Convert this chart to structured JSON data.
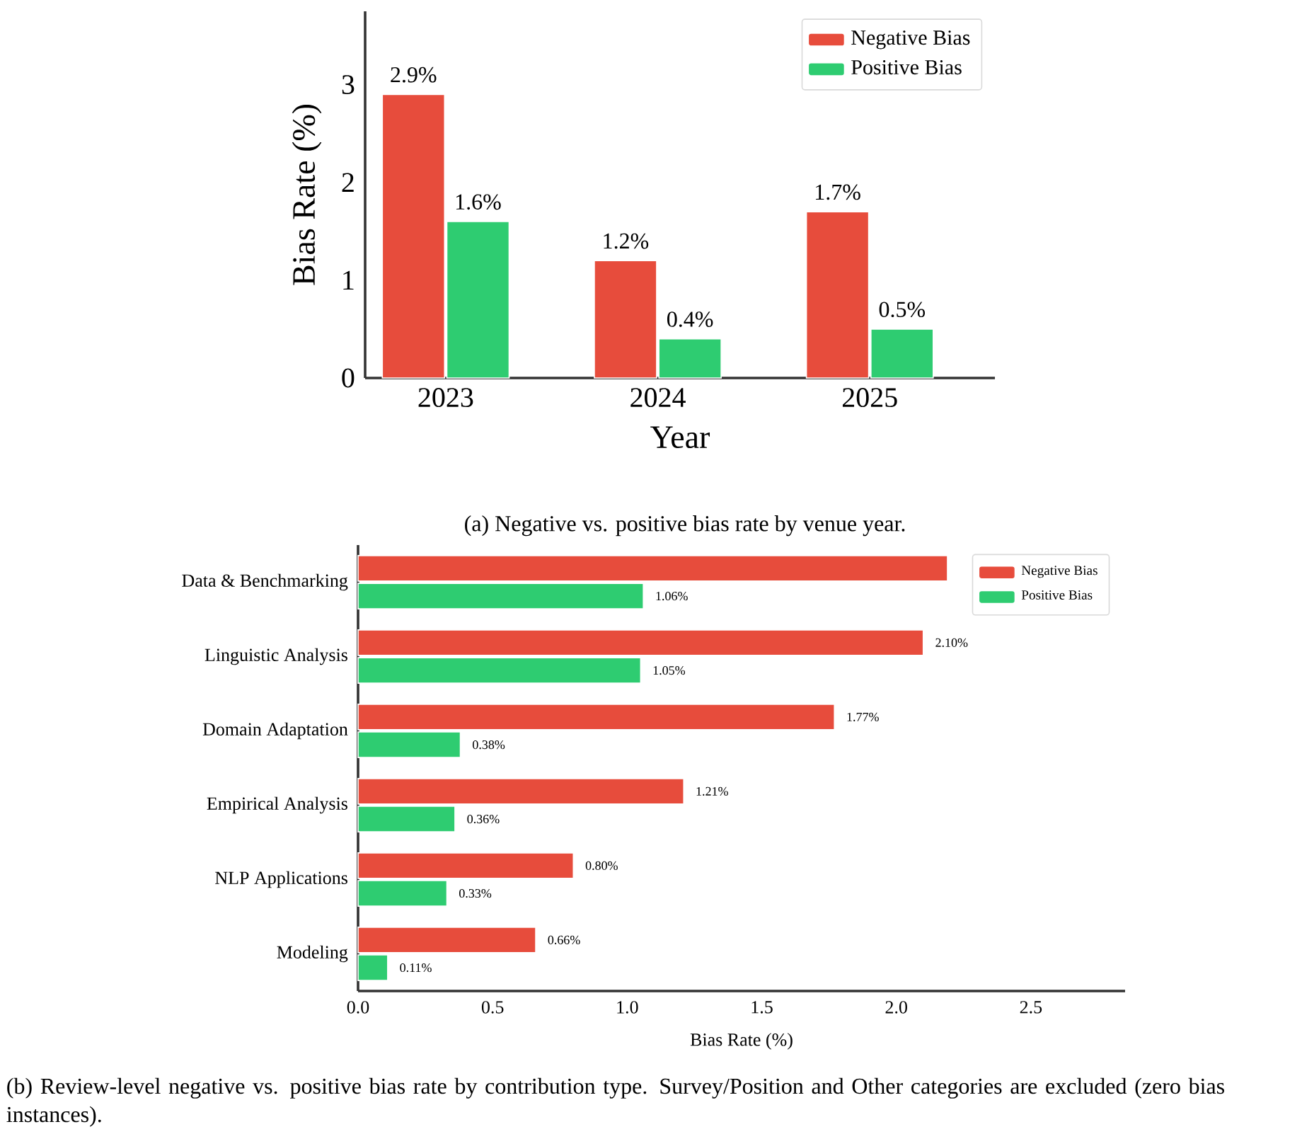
{
  "chart_data": [
    {
      "type": "bar",
      "categories": [
        "2023",
        "2024",
        "2025"
      ],
      "xlabel": "Year",
      "ylabel": "Bias Rate (%)",
      "ylim": [
        0,
        3.75
      ],
      "yticks": [
        0,
        1,
        2,
        3
      ],
      "legend": "top right",
      "series": [
        {
          "name": "Negative Bias",
          "color": "#e74c3c",
          "values": [
            2.9,
            1.2,
            1.7
          ],
          "value_labels": [
            "2.9%",
            "1.2%",
            "1.7%"
          ]
        },
        {
          "name": "Positive Bias",
          "color": "#2ecc71",
          "values": [
            1.6,
            0.4,
            0.5
          ],
          "value_labels": [
            "1.6%",
            "0.4%",
            "0.5%"
          ]
        }
      ],
      "annotations": [
        "(a) Negative vs. positive bias rate by venue year."
      ]
    },
    {
      "type": "bar",
      "orientation": "horizontal",
      "categories": [
        "Data & Benchmarking",
        "Linguistic Analysis",
        "Domain Adaptation",
        "Empirical Analysis",
        "NLP Applications",
        "Modeling"
      ],
      "xlabel": "Bias Rate (%)",
      "xlim": [
        0,
        2.85
      ],
      "xticks": [
        {
          "value": 0,
          "label": "0.0"
        },
        0.5,
        {
          "value": 1,
          "label": "1.0"
        },
        1.5,
        {
          "value": 2,
          "label": "2.0"
        },
        2.5
      ],
      "legend": "top right",
      "series": [
        {
          "name": "Negative Bias",
          "color": "#e74c3c",
          "values": [
            2.19,
            2.1,
            1.77,
            1.21,
            0.8,
            0.66
          ],
          "value_labels": [
            null,
            "2.10%",
            "1.77%",
            "1.21%",
            "0.80%",
            "0.66%"
          ]
        },
        {
          "name": "Positive Bias",
          "color": "#2ecc71",
          "values": [
            1.06,
            1.05,
            0.38,
            0.36,
            0.33,
            0.11
          ],
          "value_labels": [
            "1.06%",
            "1.05%",
            "0.38%",
            "0.36%",
            "0.33%",
            "0.11%"
          ]
        }
      ],
      "annotations": [
        "(b) Review-level negative vs. positive bias rate by contribution type. Survey/Position and Other categories are excluded (zero bias instances)."
      ]
    }
  ]
}
